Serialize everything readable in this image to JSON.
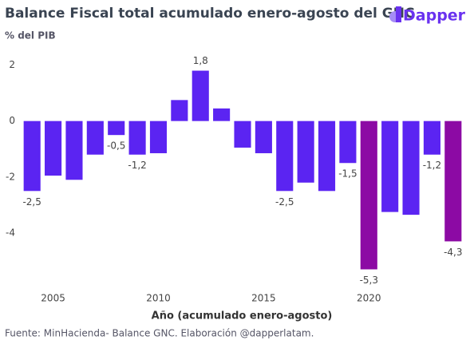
{
  "chart_data": {
    "type": "bar",
    "title": "Balance Fiscal total acumulado enero-agosto del GNC",
    "subtitle": "% del PIB",
    "brand": "Dapper",
    "x_label": "Año (acumulado enero-agosto)",
    "source": "Fuente: MinHacienda- Balance GNC. Elaboración @dapperlatam.",
    "x": [
      2004,
      2005,
      2006,
      2007,
      2008,
      2009,
      2010,
      2011,
      2012,
      2013,
      2014,
      2015,
      2016,
      2017,
      2018,
      2019,
      2020,
      2021,
      2022,
      2023,
      2024
    ],
    "values": [
      -2.5,
      -1.95,
      -2.1,
      -1.2,
      -0.5,
      -1.2,
      -1.15,
      0.75,
      1.8,
      0.45,
      -0.95,
      -1.15,
      -2.5,
      -2.2,
      -2.5,
      -1.5,
      -5.3,
      -3.25,
      -3.35,
      -1.2,
      -4.3
    ],
    "value_labels": [
      "-2,5",
      null,
      null,
      null,
      "-0,5",
      "-1,2",
      null,
      null,
      "1,8",
      null,
      null,
      null,
      "-2,5",
      null,
      null,
      "-1,5",
      "-5,3",
      null,
      null,
      "-1,2",
      "-4,3"
    ],
    "colors": [
      "#5b24f2",
      "#5b24f2",
      "#5b24f2",
      "#5b24f2",
      "#5b24f2",
      "#5b24f2",
      "#5b24f2",
      "#5b24f2",
      "#5b24f2",
      "#5b24f2",
      "#5b24f2",
      "#5b24f2",
      "#5b24f2",
      "#5b24f2",
      "#5b24f2",
      "#5b24f2",
      "#8c0aa4",
      "#5b24f2",
      "#5b24f2",
      "#5b24f2",
      "#8c0aa4"
    ],
    "xlim": [
      2003.5,
      2024.5
    ],
    "xticks": [
      2005,
      2010,
      2015,
      2020
    ],
    "ylim": [
      -5.6,
      2.5
    ],
    "yticks": [
      -4,
      -2,
      0,
      2
    ],
    "grid": false
  }
}
